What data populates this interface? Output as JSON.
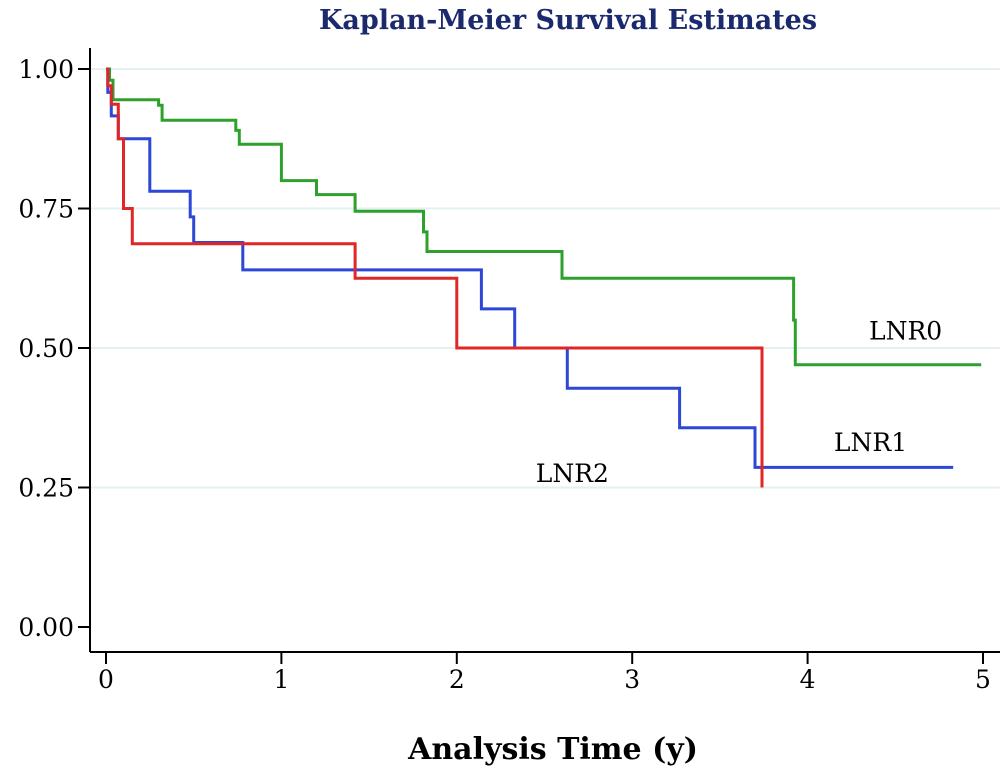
{
  "chart_data": {
    "type": "line",
    "title": "Kaplan-Meier Survival Estimates",
    "xlabel": "Analysis Time (y)",
    "ylabel": "",
    "xlim": [
      0,
      5
    ],
    "ylim": [
      0,
      1
    ],
    "x_ticks": [
      "0",
      "1",
      "2",
      "3",
      "4",
      "5"
    ],
    "y_ticks": [
      "0.00",
      "0.25",
      "0.50",
      "0.75",
      "1.00"
    ],
    "grid": true,
    "step": true,
    "colors": {
      "title": "#1a2a6c",
      "grid": "#e3f1f1",
      "axis": "#000000",
      "LNR0": "#2ea02c",
      "LNR1": "#2d47d6",
      "LNR2": "#e02626"
    },
    "series": [
      {
        "name": "LNR0",
        "x": [
          0,
          0.02,
          0.04,
          0.3,
          0.32,
          0.74,
          0.76,
          1.0,
          1.2,
          1.42,
          1.81,
          1.83,
          2.6,
          3.92,
          3.93,
          4.99
        ],
        "y": [
          1.0,
          0.98,
          0.945,
          0.935,
          0.908,
          0.89,
          0.865,
          0.8,
          0.775,
          0.745,
          0.708,
          0.673,
          0.625,
          0.55,
          0.47,
          0.47
        ]
      },
      {
        "name": "LNR1",
        "x": [
          0,
          0.01,
          0.03,
          0.07,
          0.25,
          0.48,
          0.5,
          0.78,
          2.14,
          2.33,
          2.63,
          3.27,
          3.7,
          4.83
        ],
        "y": [
          1.0,
          0.958,
          0.916,
          0.875,
          0.781,
          0.735,
          0.689,
          0.64,
          0.57,
          0.5,
          0.428,
          0.357,
          0.286,
          0.286
        ]
      },
      {
        "name": "LNR2",
        "x": [
          0,
          0.01,
          0.03,
          0.07,
          0.1,
          0.15,
          1.42,
          2.0,
          3.74
        ],
        "y": [
          1.0,
          0.97,
          0.937,
          0.875,
          0.75,
          0.687,
          0.625,
          0.5,
          0.25
        ],
        "y_end": 0.25
      }
    ],
    "annotations": [
      {
        "text": "LNR0",
        "series": "LNR0",
        "x": 4.35,
        "y": 0.515
      },
      {
        "text": "LNR1",
        "series": "LNR1",
        "x": 4.15,
        "y": 0.315
      },
      {
        "text": "LNR2",
        "series": "LNR2",
        "x": 2.45,
        "y": 0.26
      }
    ]
  }
}
